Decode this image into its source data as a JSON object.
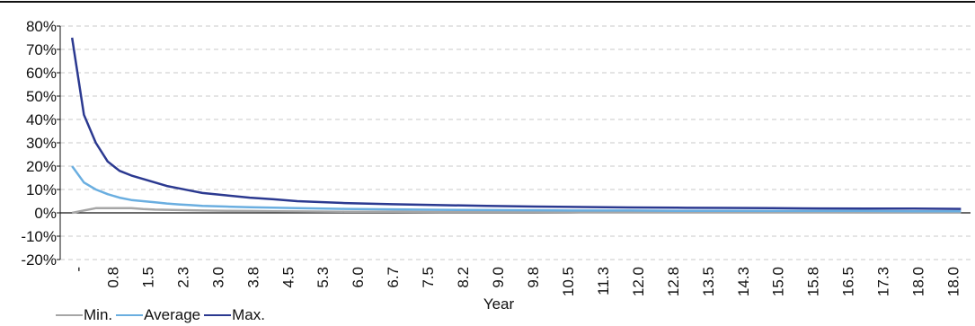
{
  "chart_data": {
    "type": "line",
    "title": "",
    "xlabel": "Year",
    "ylabel": "",
    "y_ticks": [
      "80%",
      "70%",
      "60%",
      "50%",
      "40%",
      "30%",
      "20%",
      "10%",
      "0%",
      "-10%",
      "-20%"
    ],
    "ylim": [
      -20,
      80
    ],
    "y_unit": "%",
    "grid": "horizontal dashed",
    "legend_position": "bottom-left",
    "x_ticks": [
      "-",
      "0.8",
      "1.5",
      "2.3",
      "3.0",
      "3.8",
      "4.5",
      "5.3",
      "6.0",
      "6.7",
      "7.5",
      "8.2",
      "9.0",
      "9.8",
      "10.5",
      "11.3",
      "12.0",
      "12.8",
      "13.5",
      "14.3",
      "15.0",
      "15.8",
      "16.5",
      "17.3",
      "18.0",
      "18.0"
    ],
    "x": [
      0.25,
      0.5,
      0.75,
      1.0,
      1.25,
      1.5,
      1.75,
      2.0,
      2.25,
      2.5,
      2.75,
      3.0,
      3.5,
      4.0,
      4.5,
      5.0,
      6.0,
      7.0,
      8.0,
      9.0,
      10.0,
      11.0,
      12.0,
      13.0,
      14.0,
      15.0,
      16.0,
      17.0,
      18.0,
      19.0
    ],
    "series": [
      {
        "name": "Min.",
        "color": "#a6a6a6",
        "values": [
          0,
          1,
          2,
          2,
          2,
          2,
          1.6,
          1.4,
          1.3,
          1.2,
          1.1,
          1.0,
          0.9,
          0.8,
          0.7,
          0.6,
          0.5,
          0.5,
          0.4,
          0.4,
          0.4,
          0.3,
          0.3,
          0.3,
          0.3,
          0.3,
          0.3,
          0.2,
          0.2,
          0.2
        ]
      },
      {
        "name": "Average",
        "color": "#6aaee0",
        "values": [
          20,
          13,
          10,
          8,
          6.5,
          5.5,
          5.0,
          4.5,
          4.0,
          3.6,
          3.3,
          3.0,
          2.7,
          2.4,
          2.2,
          2.0,
          1.7,
          1.5,
          1.3,
          1.2,
          1.1,
          1.0,
          1.0,
          0.9,
          0.9,
          0.8,
          0.8,
          0.8,
          0.7,
          0.7
        ]
      },
      {
        "name": "Max.",
        "color": "#2b3990",
        "values": [
          75,
          42,
          30,
          22,
          18,
          16,
          14.5,
          13,
          11.5,
          10.5,
          9.5,
          8.5,
          7.5,
          6.5,
          5.8,
          5.0,
          4.2,
          3.7,
          3.3,
          3.0,
          2.7,
          2.5,
          2.3,
          2.2,
          2.1,
          2.0,
          1.9,
          1.8,
          1.8,
          1.7
        ]
      }
    ]
  },
  "legend": {
    "min_label": "Min.",
    "average_label": "Average",
    "max_label": "Max."
  }
}
